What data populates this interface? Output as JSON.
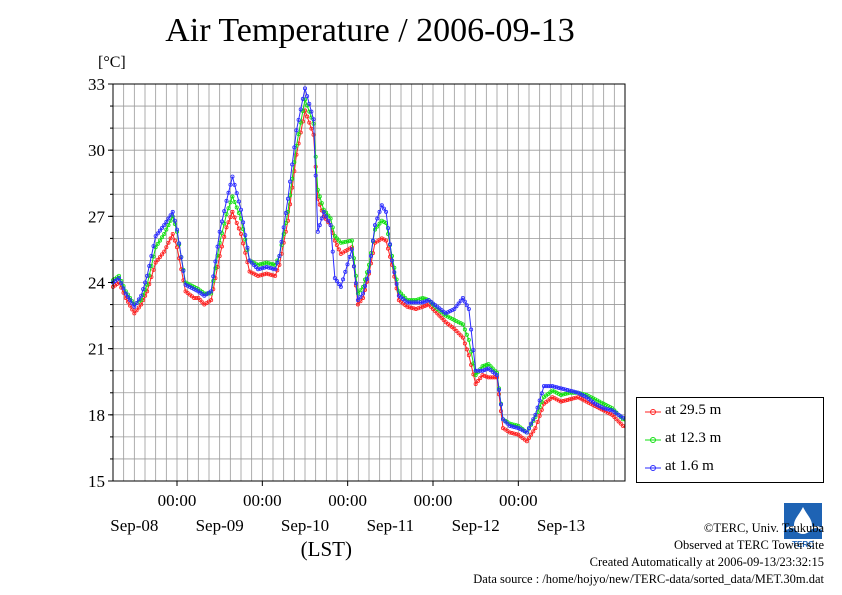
{
  "title": "Air Temperature / 2006-09-13",
  "unit": "[°C]",
  "footer": {
    "copyright": "©TERC, Univ. Tsukuba",
    "observed": "Observed at TERC Tower site",
    "created": "Created Automatically at 2006-09-13/23:32:15",
    "source": "Data source : /home/hojyo/new/TERC-data/sorted_data/MET.30m.dat"
  },
  "logo": {
    "icon": "terc-logo-icon",
    "text": "TERC"
  },
  "colors": {
    "s1": "#ff2020",
    "s2": "#10e010",
    "s3": "#2a2aff"
  },
  "chart_data": {
    "type": "line",
    "title": "Air Temperature / 2006-09-13",
    "ylabel": "[°C]",
    "xlabel": "(LST)",
    "ylim": [
      15,
      33
    ],
    "yticks": [
      15,
      18,
      21,
      24,
      27,
      30,
      33
    ],
    "xlim": [
      -0.75,
      5.25
    ],
    "time_ticks": [
      0,
      1,
      2,
      3,
      4
    ],
    "time_tick_label": "00:00",
    "day_labels": [
      {
        "x": -0.5,
        "label": "Sep-08"
      },
      {
        "x": 0.5,
        "label": "Sep-09"
      },
      {
        "x": 1.5,
        "label": "Sep-10"
      },
      {
        "x": 2.5,
        "label": "Sep-11"
      },
      {
        "x": 3.5,
        "label": "Sep-12"
      },
      {
        "x": 4.5,
        "label": "Sep-13"
      }
    ],
    "grid": true,
    "legend_position": "bottom-right",
    "series": [
      {
        "name": "at 29.5 m",
        "color": "#ff2020",
        "x": [
          -0.75,
          -0.68,
          -0.6,
          -0.5,
          -0.42,
          -0.35,
          -0.25,
          -0.15,
          -0.05,
          0.0,
          0.1,
          0.2,
          0.25,
          0.32,
          0.4,
          0.5,
          0.58,
          0.65,
          0.75,
          0.85,
          0.95,
          1.05,
          1.15,
          1.2,
          1.3,
          1.4,
          1.5,
          1.6,
          1.65,
          1.72,
          1.8,
          1.85,
          1.92,
          2.05,
          2.12,
          2.18,
          2.25,
          2.32,
          2.4,
          2.45,
          2.52,
          2.6,
          2.7,
          2.8,
          2.88,
          2.95,
          3.05,
          3.15,
          3.25,
          3.35,
          3.42,
          3.5,
          3.58,
          3.65,
          3.75,
          3.82,
          3.9,
          4.0,
          4.1,
          4.2,
          4.3,
          4.4,
          4.5,
          4.6,
          4.7,
          4.8,
          4.9,
          5.0,
          5.1,
          5.25
        ],
        "y": [
          23.8,
          24.0,
          23.3,
          22.6,
          23.0,
          23.6,
          24.9,
          25.4,
          26.2,
          25.6,
          23.6,
          23.3,
          23.3,
          23.0,
          23.2,
          25.2,
          26.5,
          27.2,
          26.2,
          24.5,
          24.3,
          24.4,
          24.3,
          24.8,
          26.8,
          29.8,
          31.8,
          30.7,
          27.8,
          27.0,
          26.6,
          25.9,
          25.3,
          25.6,
          23.0,
          23.3,
          24.4,
          25.8,
          26.0,
          25.9,
          24.8,
          23.2,
          22.9,
          22.8,
          22.9,
          23.0,
          22.6,
          22.2,
          21.9,
          21.5,
          20.7,
          19.4,
          19.8,
          19.7,
          19.7,
          17.4,
          17.2,
          17.1,
          16.8,
          17.4,
          18.5,
          18.8,
          18.6,
          18.7,
          18.8,
          18.6,
          18.4,
          18.2,
          18.0,
          17.4
        ]
      },
      {
        "name": "at 12.3 m",
        "color": "#10e010",
        "x": [
          -0.75,
          -0.68,
          -0.6,
          -0.5,
          -0.42,
          -0.35,
          -0.25,
          -0.15,
          -0.05,
          0.0,
          0.1,
          0.2,
          0.25,
          0.32,
          0.4,
          0.5,
          0.58,
          0.65,
          0.75,
          0.85,
          0.95,
          1.05,
          1.15,
          1.2,
          1.3,
          1.4,
          1.5,
          1.6,
          1.65,
          1.72,
          1.8,
          1.85,
          1.92,
          2.05,
          2.12,
          2.18,
          2.25,
          2.32,
          2.4,
          2.45,
          2.52,
          2.6,
          2.7,
          2.8,
          2.88,
          2.95,
          3.05,
          3.15,
          3.25,
          3.35,
          3.42,
          3.5,
          3.58,
          3.65,
          3.75,
          3.82,
          3.9,
          4.0,
          4.1,
          4.2,
          4.3,
          4.4,
          4.5,
          4.6,
          4.7,
          4.8,
          4.9,
          5.0,
          5.1,
          5.25
        ],
        "y": [
          24.1,
          24.3,
          23.6,
          23.0,
          23.2,
          23.9,
          25.6,
          26.2,
          27.0,
          26.3,
          24.0,
          23.8,
          23.7,
          23.5,
          23.5,
          25.8,
          27.1,
          27.9,
          26.9,
          25.0,
          24.8,
          24.9,
          24.8,
          25.2,
          27.2,
          30.2,
          32.3,
          31.2,
          28.2,
          27.3,
          26.9,
          26.1,
          25.8,
          25.9,
          23.5,
          23.8,
          24.8,
          26.4,
          26.8,
          26.7,
          25.2,
          23.6,
          23.2,
          23.2,
          23.3,
          23.2,
          22.8,
          22.5,
          22.3,
          22.1,
          21.4,
          19.8,
          20.2,
          20.3,
          19.9,
          17.8,
          17.6,
          17.5,
          17.2,
          17.9,
          18.8,
          19.1,
          18.9,
          19.0,
          19.0,
          18.9,
          18.7,
          18.5,
          18.3,
          17.7
        ]
      },
      {
        "name": "at 1.6 m",
        "color": "#2a2aff",
        "x": [
          -0.75,
          -0.68,
          -0.6,
          -0.5,
          -0.42,
          -0.35,
          -0.25,
          -0.15,
          -0.05,
          0.0,
          0.1,
          0.2,
          0.25,
          0.32,
          0.4,
          0.5,
          0.58,
          0.65,
          0.75,
          0.85,
          0.95,
          1.05,
          1.15,
          1.2,
          1.3,
          1.4,
          1.5,
          1.6,
          1.65,
          1.72,
          1.8,
          1.85,
          1.92,
          2.05,
          2.12,
          2.18,
          2.25,
          2.32,
          2.4,
          2.45,
          2.52,
          2.6,
          2.7,
          2.8,
          2.88,
          2.95,
          3.05,
          3.15,
          3.25,
          3.35,
          3.42,
          3.5,
          3.58,
          3.65,
          3.75,
          3.82,
          3.9,
          4.0,
          4.1,
          4.2,
          4.3,
          4.4,
          4.5,
          4.6,
          4.7,
          4.8,
          4.9,
          5.0,
          5.1,
          5.25
        ],
        "y": [
          24.0,
          24.2,
          23.5,
          22.9,
          23.4,
          24.3,
          26.1,
          26.6,
          27.2,
          26.4,
          23.9,
          23.7,
          23.6,
          23.4,
          23.6,
          26.3,
          27.7,
          28.8,
          27.3,
          25.0,
          24.6,
          24.7,
          24.6,
          25.2,
          27.8,
          30.9,
          32.8,
          31.4,
          26.3,
          27.2,
          26.6,
          24.2,
          23.8,
          25.5,
          23.2,
          23.5,
          24.5,
          26.6,
          27.5,
          27.2,
          25.0,
          23.4,
          23.1,
          23.1,
          23.1,
          23.2,
          22.9,
          22.6,
          22.8,
          23.3,
          22.8,
          20.0,
          20.0,
          20.1,
          19.8,
          17.8,
          17.5,
          17.4,
          17.2,
          18.0,
          19.3,
          19.3,
          19.2,
          19.1,
          19.0,
          18.8,
          18.5,
          18.3,
          18.2,
          17.8
        ]
      }
    ]
  }
}
